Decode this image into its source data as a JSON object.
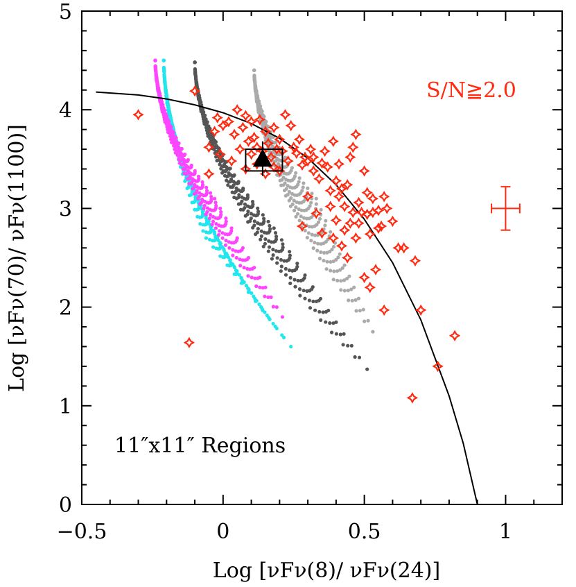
{
  "chart_data": {
    "type": "scatter",
    "xlim": [
      -0.5,
      1.2
    ],
    "ylim": [
      0,
      5
    ],
    "x_ticks": [
      {
        "value": -0.5,
        "label": "−0.5"
      },
      {
        "value": 0,
        "label": "0"
      },
      {
        "value": 0.5,
        "label": "0.5"
      },
      {
        "value": 1,
        "label": "1"
      }
    ],
    "y_ticks": [
      {
        "value": 0,
        "label": "0"
      },
      {
        "value": 1,
        "label": "1"
      },
      {
        "value": 2,
        "label": "2"
      },
      {
        "value": 3,
        "label": "3"
      },
      {
        "value": 4,
        "label": "4"
      },
      {
        "value": 5,
        "label": "5"
      }
    ],
    "xlabel": "Log [νFν(8)/ νFν(24)]",
    "ylabel": "Log [νFν(70)/ νFν(1100)]",
    "annotations": {
      "snr": "S/N≧2.0",
      "regions": "11″x11″ Regions"
    },
    "colors": {
      "points": "#ff2a10",
      "magenta": "#ff44ff",
      "cyan": "#22e6ee",
      "darkgray": "#555555",
      "lightgray": "#aaaaaa",
      "curve": "#000000",
      "errorbar": "#ff2a10"
    },
    "model_tracks": [
      {
        "name": "cyan",
        "x_top": -0.21,
        "y_top": 4.5,
        "x_bottom_range": [
          -0.06,
          0.24
        ],
        "y_bottom_range": [
          1.6,
          2.7
        ]
      },
      {
        "name": "magenta",
        "x_top": -0.24,
        "y_top": 4.5,
        "x_bottom_range": [
          -0.03,
          0.21
        ],
        "y_bottom_range": [
          1.9,
          3.1
        ]
      },
      {
        "name": "darkgray",
        "x_top": -0.1,
        "y_top": 4.48,
        "x_bottom_range": [
          0.18,
          0.51
        ],
        "y_bottom_range": [
          1.37,
          2.8
        ]
      },
      {
        "name": "lightgray",
        "x_top": 0.11,
        "y_top": 4.4,
        "x_bottom_range": [
          0.33,
          0.53
        ],
        "y_bottom_range": [
          1.75,
          3.1
        ]
      }
    ],
    "curve": [
      [
        -0.45,
        4.18
      ],
      [
        -0.3,
        4.15
      ],
      [
        -0.2,
        4.11
      ],
      [
        -0.1,
        4.05
      ],
      [
        0.0,
        3.97
      ],
      [
        0.1,
        3.86
      ],
      [
        0.2,
        3.71
      ],
      [
        0.3,
        3.51
      ],
      [
        0.4,
        3.24
      ],
      [
        0.5,
        2.89
      ],
      [
        0.6,
        2.45
      ],
      [
        0.7,
        1.87
      ],
      [
        0.8,
        1.1
      ],
      [
        0.85,
        0.62
      ],
      [
        0.9,
        0.0
      ]
    ],
    "highlight_point": {
      "x": 0.14,
      "y": 3.5,
      "box": [
        0.08,
        0.21,
        3.38,
        3.6
      ],
      "y_err": [
        3.33,
        3.68
      ]
    },
    "representative_error": {
      "x": 1.0,
      "y": 3.0,
      "xerr": 0.05,
      "yerr": 0.22
    },
    "series": [
      {
        "name": "regions",
        "x": [
          -0.3,
          -0.12,
          -0.1,
          -0.05,
          -0.05,
          -0.03,
          -0.02,
          -0.01,
          0.0,
          0.02,
          0.03,
          0.04,
          0.05,
          0.06,
          0.07,
          0.08,
          0.08,
          0.09,
          0.1,
          0.1,
          0.11,
          0.12,
          0.12,
          0.13,
          0.14,
          0.15,
          0.15,
          0.16,
          0.17,
          0.18,
          0.18,
          0.19,
          0.2,
          0.2,
          0.21,
          0.22,
          0.23,
          0.24,
          0.25,
          0.26,
          0.27,
          0.28,
          0.28,
          0.29,
          0.3,
          0.3,
          0.31,
          0.32,
          0.32,
          0.33,
          0.34,
          0.35,
          0.35,
          0.36,
          0.37,
          0.38,
          0.38,
          0.39,
          0.39,
          0.4,
          0.4,
          0.41,
          0.41,
          0.42,
          0.42,
          0.43,
          0.43,
          0.44,
          0.44,
          0.45,
          0.45,
          0.46,
          0.46,
          0.47,
          0.47,
          0.48,
          0.48,
          0.49,
          0.5,
          0.5,
          0.51,
          0.51,
          0.52,
          0.52,
          0.53,
          0.53,
          0.54,
          0.55,
          0.55,
          0.56,
          0.57,
          0.57,
          0.58,
          0.6,
          0.62,
          0.64,
          0.67,
          0.68,
          0.7,
          0.76,
          0.82
        ],
        "y": [
          3.95,
          1.64,
          4.19,
          3.62,
          3.35,
          3.78,
          3.92,
          3.55,
          3.84,
          3.88,
          3.48,
          3.75,
          4.0,
          3.6,
          3.82,
          3.4,
          3.94,
          3.68,
          3.55,
          3.88,
          3.72,
          3.45,
          3.62,
          3.9,
          3.58,
          3.35,
          3.78,
          3.66,
          3.52,
          3.42,
          3.82,
          3.6,
          3.7,
          3.38,
          3.58,
          3.95,
          3.48,
          3.84,
          3.62,
          3.56,
          3.7,
          3.44,
          2.82,
          3.52,
          3.48,
          3.12,
          3.6,
          3.38,
          3.52,
          2.95,
          3.3,
          3.46,
          2.75,
          3.58,
          3.42,
          3.18,
          3.02,
          3.68,
          2.7,
          3.28,
          2.88,
          3.45,
          3.12,
          2.62,
          3.2,
          3.02,
          2.78,
          3.24,
          2.5,
          3.52,
          2.85,
          2.96,
          3.62,
          2.7,
          3.75,
          3.06,
          2.85,
          2.96,
          2.3,
          3.38,
          2.94,
          3.16,
          2.74,
          2.2,
          2.96,
          3.1,
          2.38,
          2.8,
          2.98,
          2.82,
          3.12,
          1.97,
          3.0,
          2.87,
          2.6,
          2.6,
          1.08,
          2.47,
          1.97,
          1.4,
          1.71
        ]
      }
    ]
  }
}
